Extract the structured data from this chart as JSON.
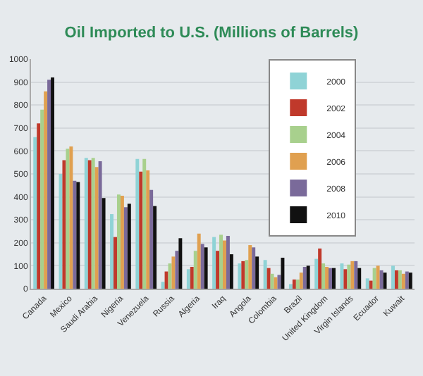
{
  "chart_data": {
    "type": "bar",
    "title": "Oil Imported to U.S. (Millions of Barrels)",
    "categories": [
      "Canada",
      "Mexico",
      "Saudi Arabia",
      "Nigeria",
      "Venezuela",
      "Russia",
      "Algeria",
      "Iraq",
      "Angola",
      "Colombia",
      "Brazil",
      "United Kingdom",
      "Virgin Islands",
      "Ecuador",
      "Kuwait"
    ],
    "series": [
      {
        "name": "2000",
        "color": "#8fd3d6",
        "values": [
          660,
          500,
          570,
          325,
          565,
          30,
          85,
          225,
          110,
          125,
          20,
          130,
          110,
          45,
          100
        ]
      },
      {
        "name": "2002",
        "color": "#c0392b",
        "values": [
          720,
          560,
          560,
          225,
          510,
          75,
          95,
          165,
          120,
          90,
          40,
          175,
          85,
          35,
          80
        ]
      },
      {
        "name": "2004",
        "color": "#a8d08d",
        "values": [
          780,
          610,
          570,
          410,
          565,
          110,
          165,
          235,
          125,
          65,
          40,
          110,
          105,
          90,
          80
        ]
      },
      {
        "name": "2006",
        "color": "#e0a050",
        "values": [
          860,
          620,
          530,
          405,
          515,
          140,
          240,
          210,
          190,
          50,
          70,
          95,
          120,
          100,
          65
        ]
      },
      {
        "name": "2008",
        "color": "#7a6a9a",
        "values": [
          910,
          470,
          555,
          355,
          430,
          165,
          195,
          230,
          180,
          60,
          95,
          90,
          120,
          80,
          75
        ]
      },
      {
        "name": "2010",
        "color": "#111111",
        "values": [
          920,
          465,
          395,
          370,
          360,
          220,
          180,
          150,
          140,
          135,
          100,
          90,
          90,
          70,
          70
        ]
      }
    ],
    "ylim": [
      0,
      1000
    ],
    "yticks": [
      0,
      100,
      200,
      300,
      400,
      500,
      600,
      700,
      800,
      900,
      1000
    ],
    "grid": "y",
    "legend": "top"
  }
}
